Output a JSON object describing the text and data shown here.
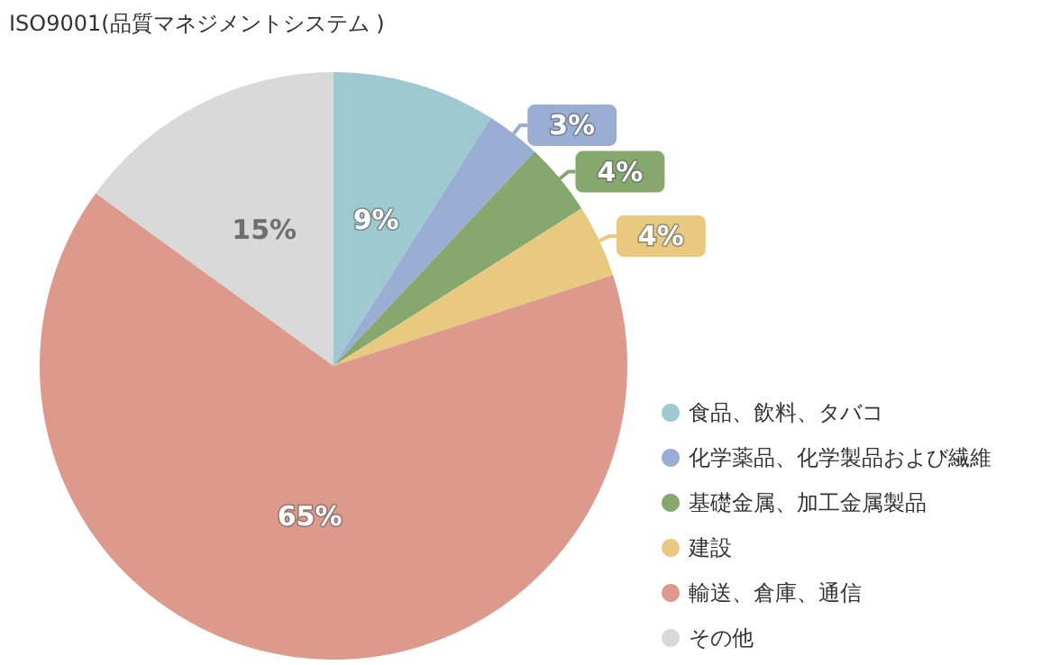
{
  "chart_data": {
    "type": "pie",
    "title": "ISO9001(品質マネジメントシステム )",
    "categories": [
      "食品、飲料、タバコ",
      "化学薬品、化学製品および繊維",
      "基礎金属、加工金属製品",
      "建設",
      "輸送、倉庫、通信",
      "その他"
    ],
    "values": [
      9,
      3,
      4,
      4,
      65,
      15
    ],
    "colors": [
      "#9ec9d0",
      "#9aaed4",
      "#86a86f",
      "#e8c97f",
      "#dc998c",
      "#d9d9d9"
    ],
    "value_labels": [
      "9%",
      "3%",
      "4%",
      "4%",
      "65%",
      "15%"
    ],
    "legend": "right"
  }
}
